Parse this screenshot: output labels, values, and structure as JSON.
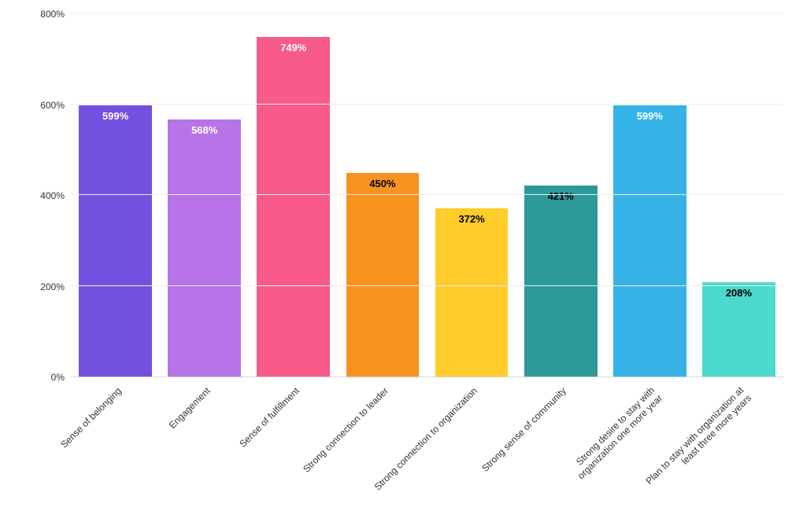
{
  "chart": {
    "type": "bar",
    "background_color": "#ffffff",
    "grid_color": "#ececec",
    "axis_color": "#d7d7d7",
    "tick_label_color": "#333333",
    "tick_fontsize": 12,
    "bar_label_fontsize": 13,
    "bar_label_fontweight": 700,
    "bar_width_ratio": 0.82,
    "ylim": [
      0,
      800
    ],
    "y_ticks": [
      {
        "value": 0,
        "label": "0%"
      },
      {
        "value": 200,
        "label": "200%"
      },
      {
        "value": 400,
        "label": "400%"
      },
      {
        "value": 600,
        "label": "600%"
      },
      {
        "value": 800,
        "label": "800%"
      }
    ],
    "categories": [
      "Sense of belonging",
      "Engagement",
      "Sense of fulfillment",
      "Strong connection to leader",
      "Strong connection to organization",
      "Strong sense of community",
      "Strong desire to stay with\norganization one more year",
      "Plan to stay with organization at\nleast three more years"
    ],
    "values": [
      599,
      568,
      749,
      450,
      372,
      421,
      599,
      208
    ],
    "value_labels": [
      "599%",
      "568%",
      "749%",
      "450%",
      "372%",
      "421%",
      "599%",
      "208%"
    ],
    "bar_colors": [
      "#7450e0",
      "#b873e8",
      "#f85b8a",
      "#f7931e",
      "#ffcc29",
      "#2e9999",
      "#36b3e6",
      "#4dd9cc"
    ],
    "bar_label_colors": [
      "#ffffff",
      "#ffffff",
      "#ffffff",
      "#000000",
      "#000000",
      "#000000",
      "#ffffff",
      "#000000"
    ]
  }
}
